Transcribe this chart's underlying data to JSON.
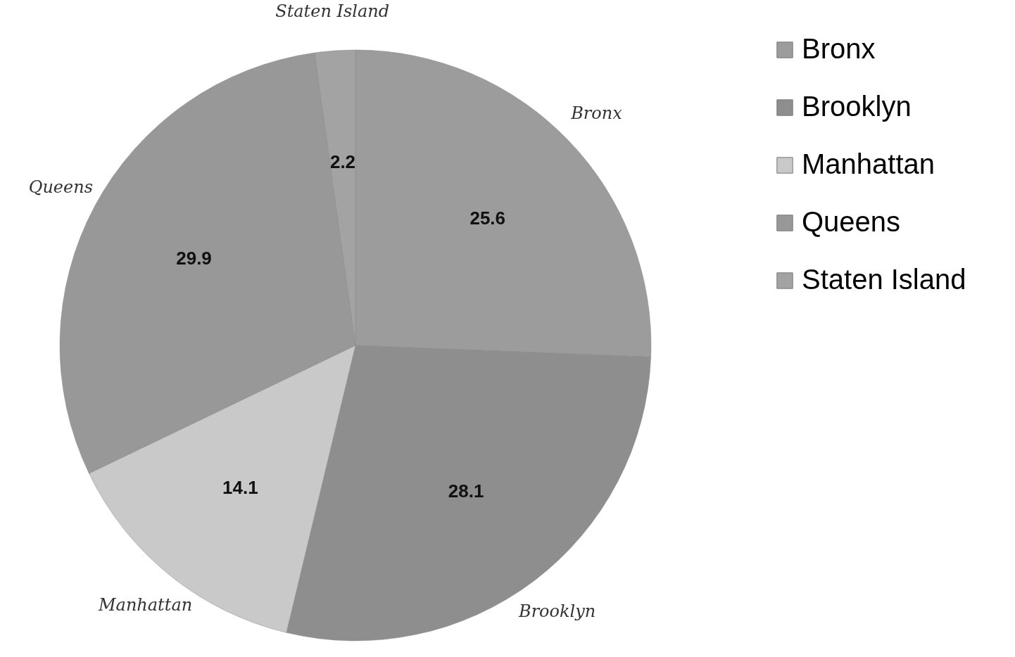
{
  "chart_data": {
    "type": "pie",
    "categories": [
      "Bronx",
      "Brooklyn",
      "Manhattan",
      "Queens",
      "Staten Island"
    ],
    "values": [
      25.6,
      28.1,
      14.1,
      29.9,
      2.2
    ],
    "colors": [
      "#9c9c9c",
      "#8e8e8e",
      "#c9c9c9",
      "#989898",
      "#a3a3a3"
    ],
    "data_labels": true,
    "legend": "right"
  }
}
